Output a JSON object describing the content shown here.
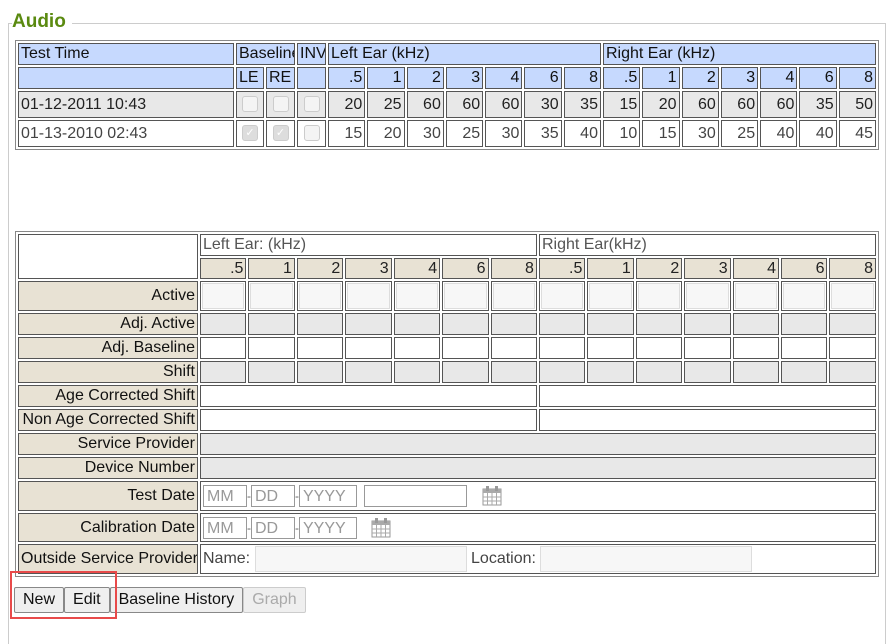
{
  "section_title": "Audio",
  "history": {
    "headers": {
      "test_time": "Test Time",
      "baseline": "Baseline",
      "inv": "INV",
      "left_ear": "Left Ear (kHz)",
      "right_ear": "Right Ear (kHz)",
      "le": "LE",
      "re": "RE"
    },
    "freqs": [
      ".5",
      "1",
      "2",
      "3",
      "4",
      "6",
      "8"
    ],
    "rows": [
      {
        "time": "01-12-2011 10:43",
        "le": false,
        "re": false,
        "inv": false,
        "left": [
          "20",
          "25",
          "60",
          "60",
          "60",
          "30",
          "35"
        ],
        "right": [
          "15",
          "20",
          "60",
          "60",
          "60",
          "35",
          "50"
        ]
      },
      {
        "time": "01-13-2010 02:43",
        "le": true,
        "re": true,
        "inv": false,
        "left": [
          "15",
          "20",
          "30",
          "25",
          "30",
          "35",
          "40"
        ],
        "right": [
          "10",
          "15",
          "30",
          "25",
          "40",
          "40",
          "45"
        ]
      }
    ]
  },
  "entry": {
    "left_ear": "Left Ear: (kHz)",
    "right_ear": "Right Ear(kHz)",
    "rows": {
      "active": "Active",
      "adj_active": "Adj. Active",
      "adj_baseline": "Adj. Baseline",
      "shift": "Shift",
      "age_corrected": "Age Corrected Shift",
      "non_age_corrected": "Non Age Corrected Shift",
      "service_provider": "Service Provider",
      "device_number": "Device Number",
      "test_date": "Test Date",
      "calibration_date": "Calibration Date",
      "outside_provider": "Outside Service Provider"
    },
    "placeholders": {
      "mm": "MM",
      "dd": "DD",
      "yyyy": "YYYY"
    },
    "name_label": "Name:",
    "location_label": "Location:"
  },
  "buttons": {
    "new": "New",
    "edit": "Edit",
    "baseline_history": "Baseline History",
    "graph": "Graph"
  }
}
